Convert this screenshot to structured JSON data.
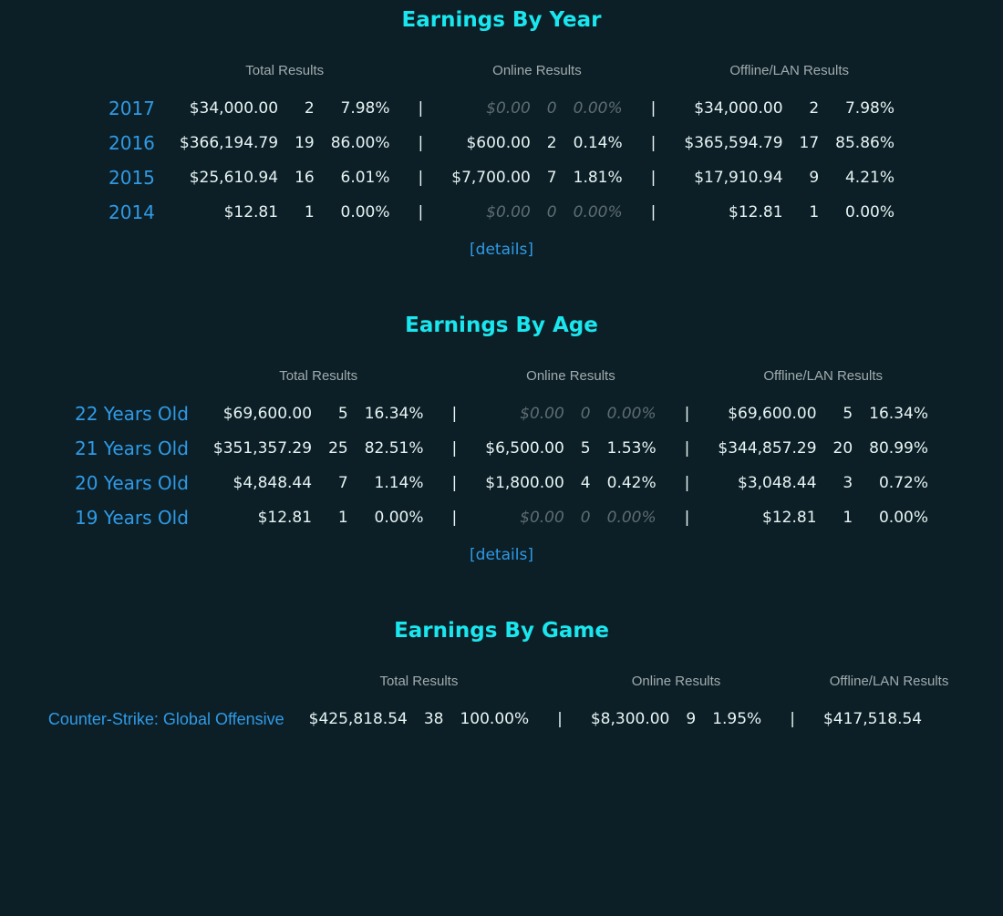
{
  "sections": [
    {
      "title": "Earnings By Year",
      "headers": [
        "Total Results",
        "Online Results",
        "Offline/LAN Results"
      ],
      "rows": [
        {
          "label": "2017",
          "total": [
            "$34,000.00",
            "2",
            "7.98%"
          ],
          "online": [
            "$0.00",
            "0",
            "0.00%"
          ],
          "online_muted": true,
          "offline": [
            "$34,000.00",
            "2",
            "7.98%"
          ]
        },
        {
          "label": "2016",
          "total": [
            "$366,194.79",
            "19",
            "86.00%"
          ],
          "online": [
            "$600.00",
            "2",
            "0.14%"
          ],
          "offline": [
            "$365,594.79",
            "17",
            "85.86%"
          ]
        },
        {
          "label": "2015",
          "total": [
            "$25,610.94",
            "16",
            "6.01%"
          ],
          "online": [
            "$7,700.00",
            "7",
            "1.81%"
          ],
          "offline": [
            "$17,910.94",
            "9",
            "4.21%"
          ]
        },
        {
          "label": "2014",
          "total": [
            "$12.81",
            "1",
            "0.00%"
          ],
          "online": [
            "$0.00",
            "0",
            "0.00%"
          ],
          "online_muted": true,
          "offline": [
            "$12.81",
            "1",
            "0.00%"
          ]
        }
      ],
      "separator": "|",
      "link": "[details]"
    },
    {
      "title": "Earnings By Age",
      "headers": [
        "Total Results",
        "Online Results",
        "Offline/LAN Results"
      ],
      "rows": [
        {
          "label": "22 Years Old",
          "total": [
            "$69,600.00",
            "5",
            "16.34%"
          ],
          "online": [
            "$0.00",
            "0",
            "0.00%"
          ],
          "online_muted": true,
          "offline": [
            "$69,600.00",
            "5",
            "16.34%"
          ]
        },
        {
          "label": "21 Years Old",
          "total": [
            "$351,357.29",
            "25",
            "82.51%"
          ],
          "online": [
            "$6,500.00",
            "5",
            "1.53%"
          ],
          "offline": [
            "$344,857.29",
            "20",
            "80.99%"
          ]
        },
        {
          "label": "20 Years Old",
          "total": [
            "$4,848.44",
            "7",
            "1.14%"
          ],
          "online": [
            "$1,800.00",
            "4",
            "0.42%"
          ],
          "offline": [
            "$3,048.44",
            "3",
            "0.72%"
          ]
        },
        {
          "label": "19 Years Old",
          "total": [
            "$12.81",
            "1",
            "0.00%"
          ],
          "online": [
            "$0.00",
            "0",
            "0.00%"
          ],
          "online_muted": true,
          "offline": [
            "$12.81",
            "1",
            "0.00%"
          ]
        }
      ],
      "separator": "|",
      "link": "[details]"
    },
    {
      "title": "Earnings By Game",
      "headers": [
        "Total Results",
        "Online Results",
        "Offline/LAN Results"
      ],
      "rows": [
        {
          "label": "Counter-Strike: Global Offensive",
          "total": [
            "$425,818.54",
            "38",
            "100.00%"
          ],
          "online": [
            "$8,300.00",
            "9",
            "1.95%"
          ],
          "offline": [
            "$417,518.54"
          ]
        }
      ],
      "separator": "|"
    }
  ]
}
